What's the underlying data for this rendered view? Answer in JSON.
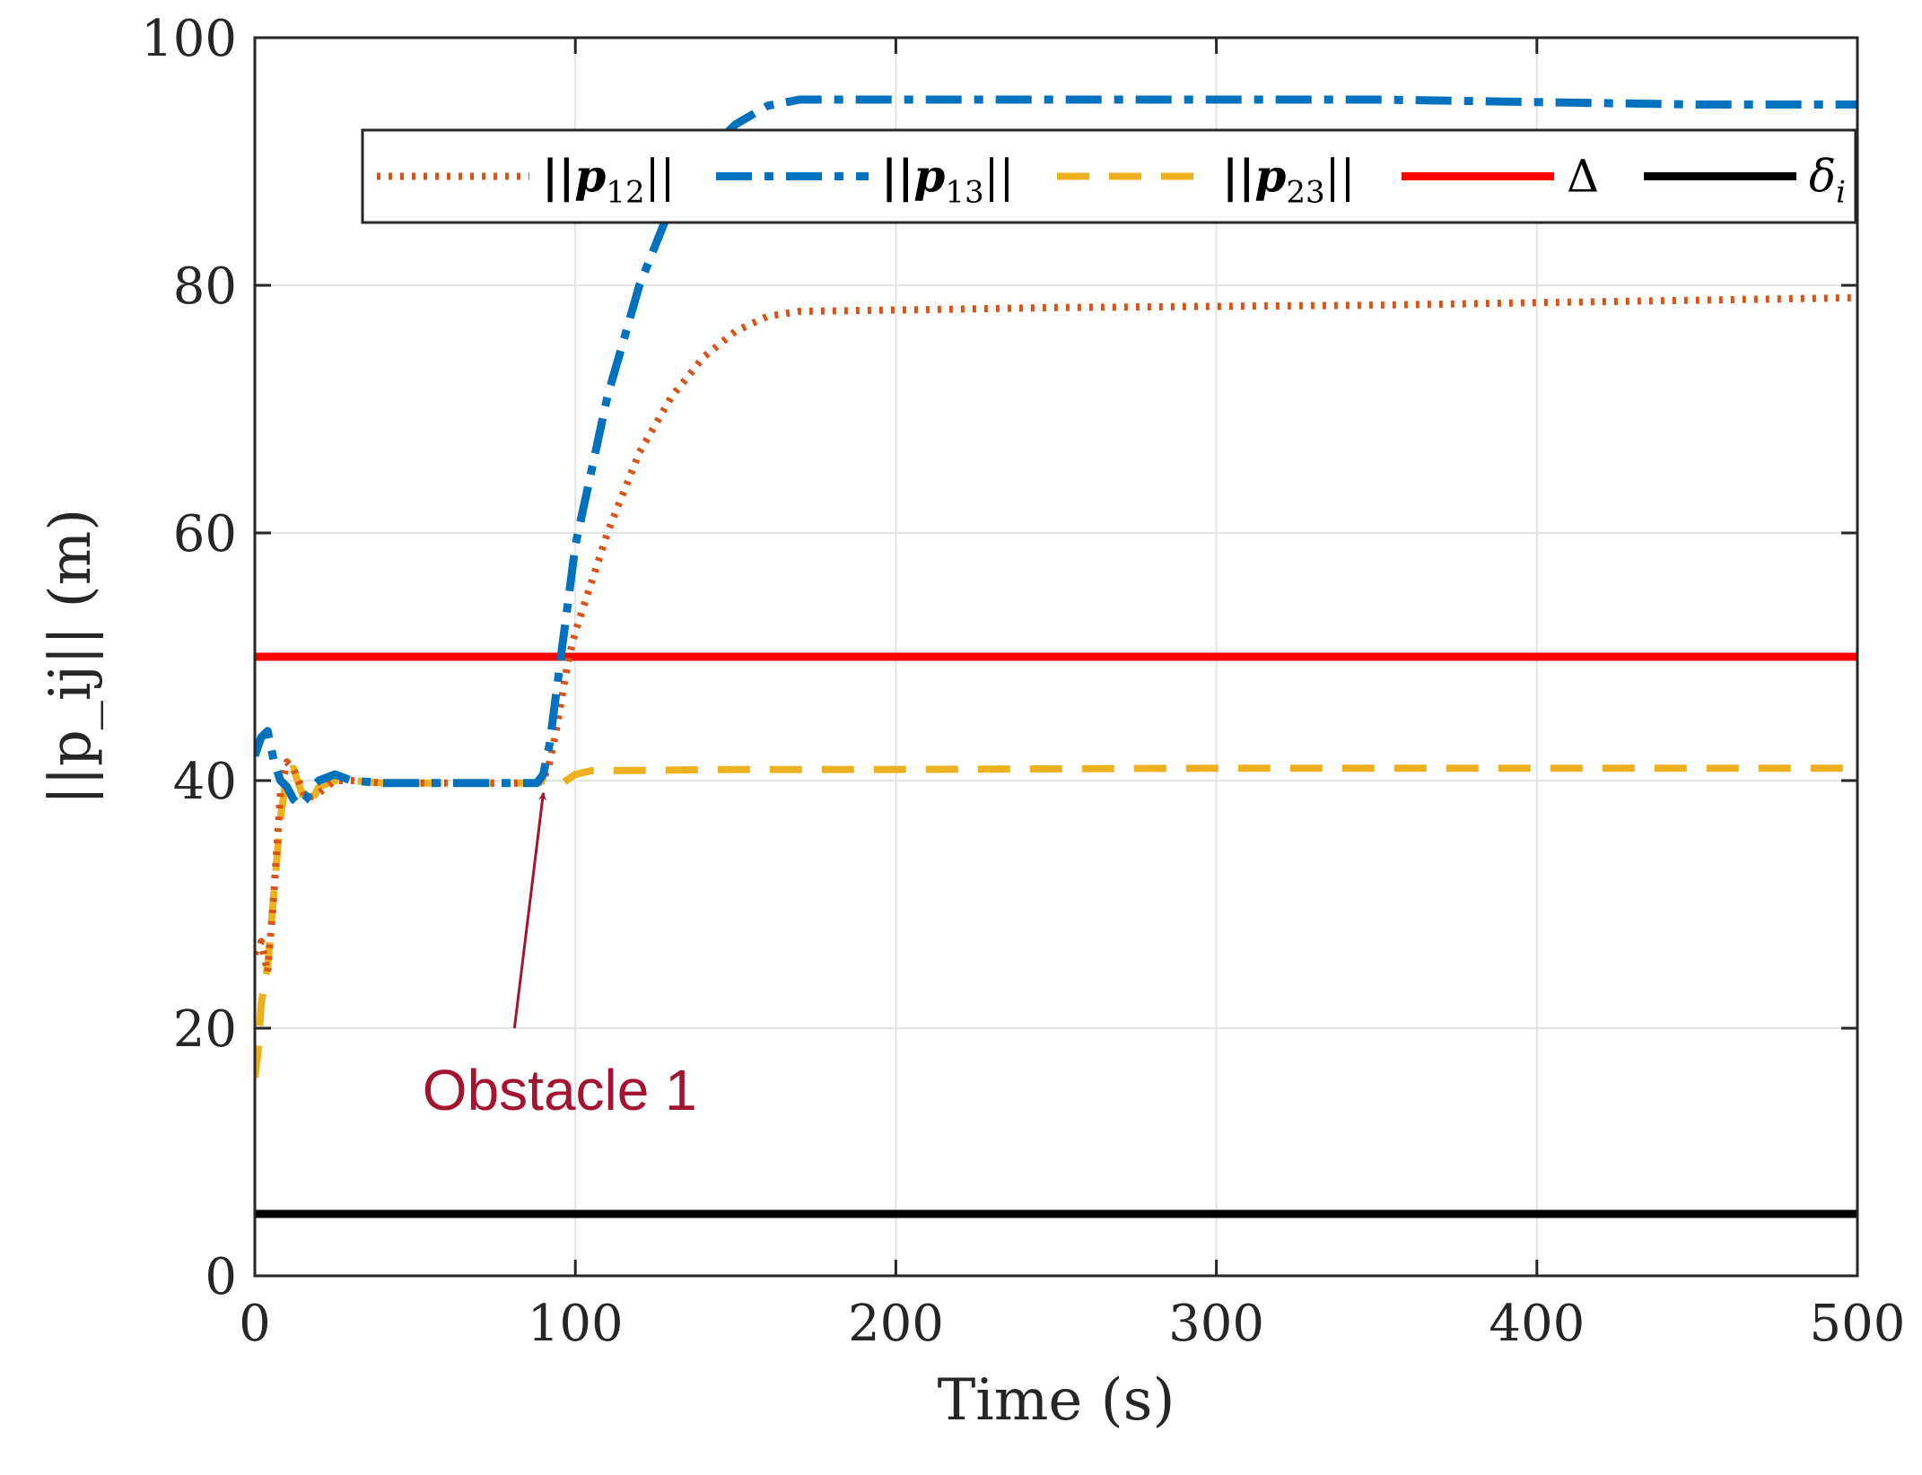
{
  "chart_data": {
    "type": "line",
    "title": "",
    "xlabel": "Time (s)",
    "ylabel": "||p_ij|| (m)",
    "xlim": [
      0,
      500
    ],
    "ylim": [
      0,
      100
    ],
    "xticks": [
      0,
      100,
      200,
      300,
      400,
      500
    ],
    "yticks": [
      0,
      20,
      40,
      60,
      80,
      100
    ],
    "grid": true,
    "legend_position": "top",
    "series": [
      {
        "name": "p12",
        "legend_prefix": "||p",
        "legend_sub": "12",
        "legend_suffix": "||",
        "color": "#D95319",
        "style": "dotted",
        "x": [
          0,
          2,
          4,
          6,
          8,
          10,
          12,
          16,
          20,
          25,
          30,
          40,
          60,
          80,
          88,
          90,
          92,
          94,
          96,
          98,
          100,
          105,
          110,
          120,
          130,
          140,
          150,
          160,
          170,
          200,
          250,
          300,
          350,
          400,
          450,
          500
        ],
        "y": [
          26,
          27,
          24.5,
          31,
          39,
          41.5,
          41,
          38.5,
          39,
          40,
          40,
          39.8,
          39.8,
          39.8,
          39.8,
          40,
          41.5,
          44,
          47,
          50,
          52,
          56,
          60,
          66.5,
          71,
          74.2,
          76.3,
          77.5,
          77.9,
          78,
          78.2,
          78.3,
          78.4,
          78.6,
          78.8,
          79
        ]
      },
      {
        "name": "p13",
        "legend_prefix": "||p",
        "legend_sub": "13",
        "legend_suffix": "||",
        "color": "#0072BD",
        "style": "dashdot",
        "x": [
          0,
          2,
          4,
          6,
          8,
          10,
          12,
          14,
          16,
          18,
          20,
          25,
          30,
          40,
          60,
          80,
          88,
          90,
          92,
          94,
          96,
          98,
          100,
          105,
          110,
          120,
          130,
          140,
          150,
          160,
          170,
          200,
          250,
          300,
          350,
          400,
          450,
          500
        ],
        "y": [
          42,
          43.5,
          44,
          41.5,
          40,
          39.5,
          38.5,
          38,
          38.5,
          39.5,
          40,
          40.5,
          40,
          39.8,
          39.8,
          39.8,
          39.8,
          40.5,
          43,
          47,
          51,
          55,
          59,
          65,
          71,
          80,
          86.5,
          90.5,
          93,
          94.5,
          95,
          95,
          95,
          95,
          95,
          94.8,
          94.6,
          94.6
        ]
      },
      {
        "name": "p23",
        "legend_prefix": "||p",
        "legend_sub": "23",
        "legend_suffix": "||",
        "color": "#EDB120",
        "style": "dashed",
        "x": [
          0,
          1,
          2,
          4,
          6,
          8,
          10,
          12,
          14,
          16,
          18,
          20,
          25,
          30,
          40,
          60,
          80,
          88,
          90,
          93,
          96,
          100,
          105,
          110,
          150,
          200,
          300,
          400,
          500
        ],
        "y": [
          16,
          18,
          22,
          25,
          31,
          37,
          40.5,
          41,
          39.5,
          38,
          38.5,
          39.5,
          40,
          40,
          39.8,
          39.8,
          39.8,
          39.8,
          40,
          39.7,
          39.8,
          40.5,
          40.8,
          40.8,
          40.9,
          40.9,
          41,
          41,
          41
        ]
      },
      {
        "name": "Delta",
        "legend_label": "Δ",
        "color": "#FF0000",
        "style": "solid",
        "x": [
          0,
          500
        ],
        "y": [
          50,
          50
        ]
      },
      {
        "name": "delta_i",
        "legend_label": "δ",
        "legend_sub": "i",
        "color": "#000000",
        "style": "solid",
        "x": [
          0,
          500
        ],
        "y": [
          5,
          5
        ]
      }
    ],
    "annotations": [
      {
        "text": "Obstacle 1",
        "color": "#A2142F",
        "text_at": [
          80,
          15
        ],
        "arrow_from": [
          81,
          20
        ],
        "arrow_to": [
          90,
          39
        ]
      }
    ]
  }
}
